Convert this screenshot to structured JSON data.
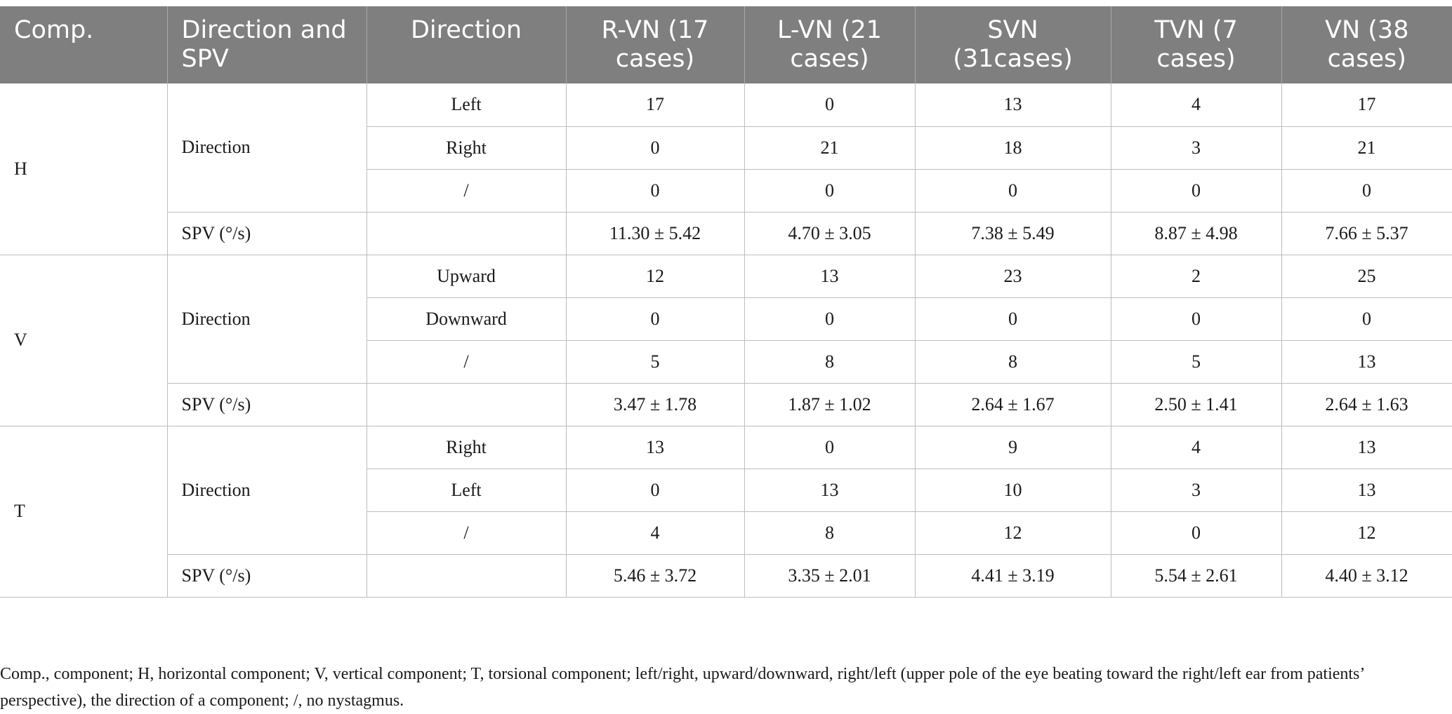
{
  "header": {
    "comp": "Comp.",
    "direction_and_spv": "Direction and SPV",
    "direction": "Direction",
    "rvn": "R-VN (17 cases)",
    "lvn": "L-VN (21 cases)",
    "svn": "SVN (31cases)",
    "tvn": "TVN (7 cases)",
    "vn": "VN (38 cases)"
  },
  "groups": [
    {
      "comp": "H",
      "dir_label": "Direction",
      "rows": [
        {
          "dir": "Left",
          "rvn": "17",
          "lvn": "0",
          "svn": "13",
          "tvn": "4",
          "vn": "17"
        },
        {
          "dir": "Right",
          "rvn": "0",
          "lvn": "21",
          "svn": "18",
          "tvn": "3",
          "vn": "21"
        },
        {
          "dir": "/",
          "rvn": "0",
          "lvn": "0",
          "svn": "0",
          "tvn": "0",
          "vn": "0"
        }
      ],
      "spv": {
        "label": "SPV (°/s)",
        "rvn": "11.30 ± 5.42",
        "lvn": "4.70 ± 3.05",
        "svn": "7.38 ± 5.49",
        "tvn": "8.87 ± 4.98",
        "vn": "7.66 ± 5.37"
      }
    },
    {
      "comp": "V",
      "dir_label": "Direction",
      "rows": [
        {
          "dir": "Upward",
          "rvn": "12",
          "lvn": "13",
          "svn": "23",
          "tvn": "2",
          "vn": "25"
        },
        {
          "dir": "Downward",
          "rvn": "0",
          "lvn": "0",
          "svn": "0",
          "tvn": "0",
          "vn": "0"
        },
        {
          "dir": "/",
          "rvn": "5",
          "lvn": "8",
          "svn": "8",
          "tvn": "5",
          "vn": "13"
        }
      ],
      "spv": {
        "label": "SPV (°/s)",
        "rvn": "3.47 ± 1.78",
        "lvn": "1.87 ± 1.02",
        "svn": "2.64 ± 1.67",
        "tvn": "2.50 ± 1.41",
        "vn": "2.64 ± 1.63"
      }
    },
    {
      "comp": "T",
      "dir_label": "Direction",
      "rows": [
        {
          "dir": "Right",
          "rvn": "13",
          "lvn": "0",
          "svn": "9",
          "tvn": "4",
          "vn": "13"
        },
        {
          "dir": "Left",
          "rvn": "0",
          "lvn": "13",
          "svn": "10",
          "tvn": "3",
          "vn": "13"
        },
        {
          "dir": "/",
          "rvn": "4",
          "lvn": "8",
          "svn": "12",
          "tvn": "0",
          "vn": "12"
        }
      ],
      "spv": {
        "label": "SPV (°/s)",
        "rvn": "5.46 ± 3.72",
        "lvn": "3.35 ± 2.01",
        "svn": "4.41 ± 3.19",
        "tvn": "5.54 ± 2.61",
        "vn": "4.40 ± 3.12"
      }
    }
  ],
  "footnote": "Comp., component; H, horizontal component; V, vertical component; T, torsional component; left/right, upward/downward, right/left (upper pole of the eye beating toward the right/left ear from patients’ perspective), the direction of a component; /, no nystagmus."
}
